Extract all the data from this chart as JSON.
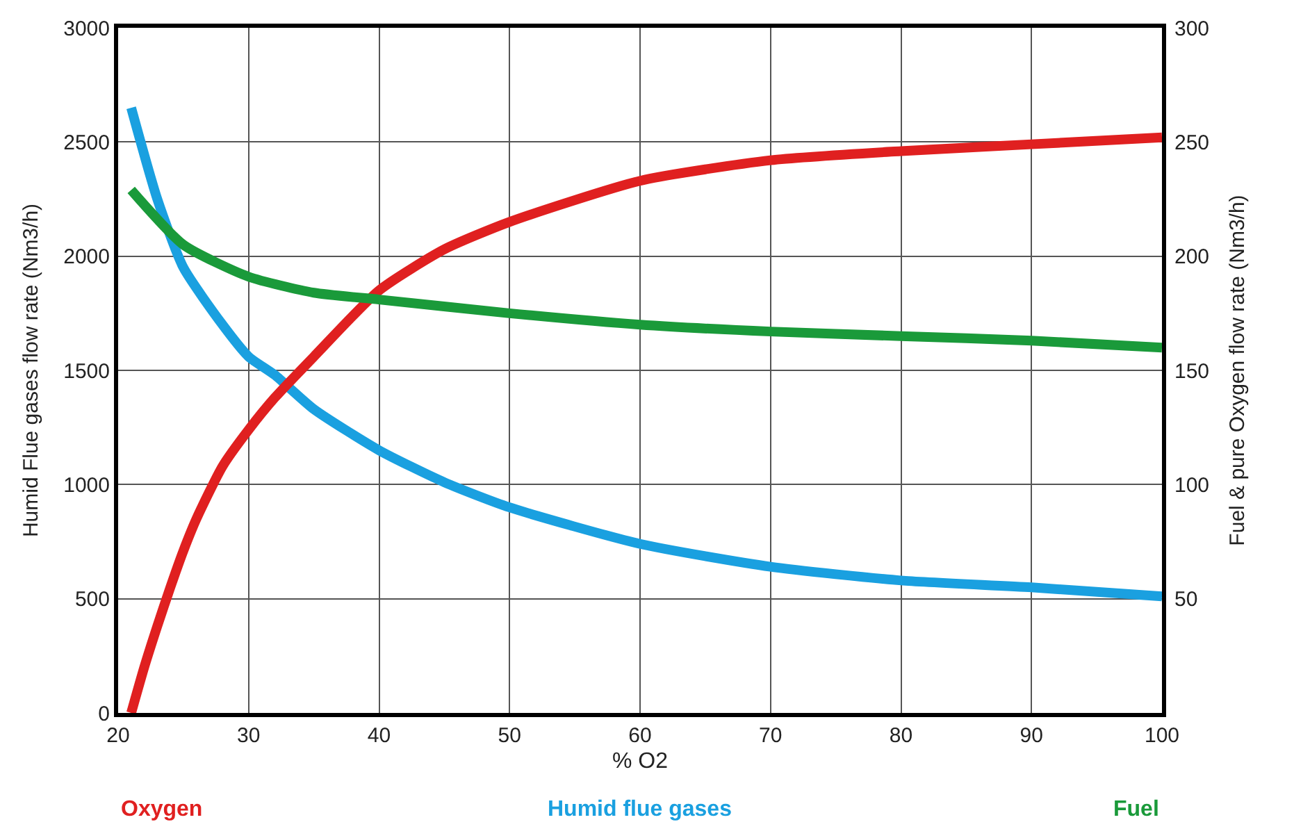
{
  "chart_data": {
    "type": "line",
    "xlabel": "% O2",
    "ylabel": "Humid Flue gases flow rate (Nm3/h)",
    "y2label": "Fuel & pure Oxygen flow rate (Nm3/h)",
    "xlim": [
      20,
      100
    ],
    "xticks": [
      20,
      30,
      40,
      50,
      60,
      70,
      80,
      90,
      100
    ],
    "ylim": [
      0,
      3000
    ],
    "yticks": [
      0,
      500,
      1000,
      1500,
      2000,
      2500,
      3000
    ],
    "y2lim": [
      0,
      300
    ],
    "y2ticks": [
      50,
      100,
      150,
      200,
      250,
      300
    ],
    "grid": true,
    "legend": "bottom",
    "marker": "none",
    "line_style": "solid",
    "series": [
      {
        "name": "Oxygen",
        "color": "#e02020",
        "axis": "y2",
        "x": [
          21,
          22,
          23,
          24,
          25,
          26,
          28,
          30,
          32,
          35,
          40,
          45,
          50,
          60,
          70,
          80,
          90,
          100
        ],
        "values": [
          0,
          20,
          38,
          55,
          71,
          85,
          108,
          124,
          138,
          156,
          185,
          203,
          215,
          233,
          242,
          246,
          249,
          252
        ]
      },
      {
        "name": "Humid flue gases",
        "color": "#1aa0e0",
        "x": [
          21,
          23,
          25,
          28,
          30,
          32,
          35,
          40,
          45,
          50,
          60,
          70,
          80,
          90,
          100
        ],
        "values": [
          2650,
          2250,
          1950,
          1700,
          1560,
          1480,
          1330,
          1150,
          1010,
          900,
          740,
          640,
          580,
          550,
          510
        ]
      },
      {
        "name": "Fuel",
        "color": "#1a9a3a",
        "axis": "y2",
        "x": [
          21,
          25,
          30,
          35,
          40,
          50,
          60,
          70,
          80,
          90,
          100
        ],
        "values": [
          229,
          205,
          191,
          184,
          181,
          175,
          170,
          167,
          165,
          163,
          160
        ]
      }
    ]
  }
}
